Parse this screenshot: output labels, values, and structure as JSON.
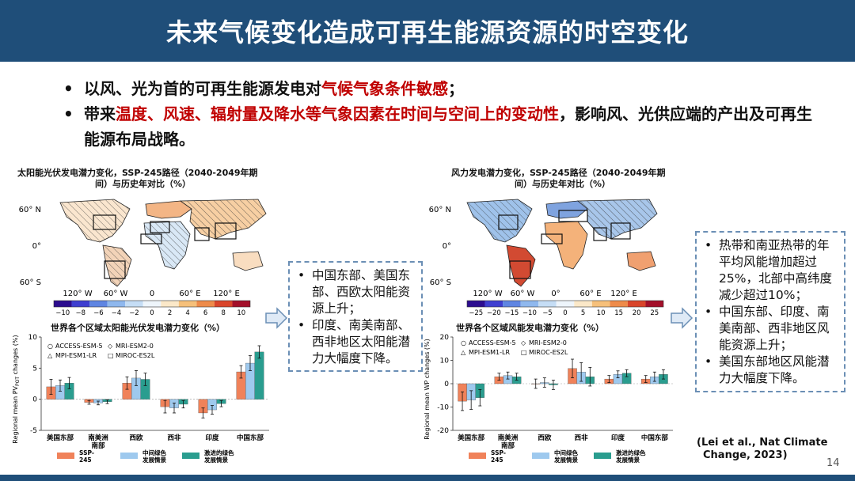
{
  "title": "未来气候变化造成可再生能源资源的时空变化",
  "bullets": [
    {
      "pre": "以风、光为首的可再生能源发电对",
      "red": "气候气象条件敏感",
      "post": "；"
    },
    {
      "pre": "带来",
      "red": "温度、风速、辐射量及降水等气象因素在时间与空间上的变动性",
      "post": "，影响风、光供应端的产出及可再生能源布局战略。"
    }
  ],
  "left": {
    "map_title_line1": "太阳能光伏发电潜力变化，SSP-245路径（2040-2049年期",
    "map_title_line2": "间）与历史年对比（%）",
    "lat_labels": [
      "60° N",
      "0°",
      "60° S"
    ],
    "lon_labels": [
      "120° W",
      "60° W",
      "0",
      "60° E",
      "120° E"
    ],
    "colorbar_ticks": [
      "−10",
      "−8",
      "−6",
      "−4",
      "−2",
      "0",
      "2",
      "4",
      "6",
      "8",
      "10"
    ],
    "colorbar_colors": [
      "#2c0d8f",
      "#3f3fd0",
      "#5f85e2",
      "#8fb8ee",
      "#c5ddf5",
      "#eef5fb",
      "#fbe8c8",
      "#f6c07a",
      "#ee8b4a",
      "#d9452b",
      "#a3102a"
    ],
    "bar_title": "世界各个区域太阳能光伏发电潜力变化（%）",
    "ylabel": "Regional mean PV",
    "ylabel_sub": "POT",
    "ylabel_tail": " changes (%)",
    "legend_models": [
      "ACCESS-ESM-5",
      "MRI-ESM2-0",
      "MPI-ESM1-LR",
      "MIROC-ES2L"
    ],
    "callout": [
      "中国东部、美国东部、西欧太阳能资源上升；",
      "印度、南美南部、西非地区太阳能潜力大幅度下降。"
    ]
  },
  "right": {
    "map_title_line1": "风力发电潜力变化，SSP-245路径（2040-2049年期",
    "map_title_line2": "间）与历史年对比（%）",
    "lat_labels": [
      "60° N",
      "0°",
      "60° S"
    ],
    "lon_labels": [
      "120° W",
      "60° W",
      "0°",
      "60° E",
      "120° E"
    ],
    "colorbar_ticks": [
      "−25",
      "−20",
      "−15",
      "−10",
      "−5",
      "0",
      "5",
      "10",
      "15",
      "20",
      "25"
    ],
    "colorbar_colors": [
      "#2c0d8f",
      "#3f3fd0",
      "#5f85e2",
      "#8fb8ee",
      "#c5ddf5",
      "#eef5fb",
      "#fbe8c8",
      "#f6c07a",
      "#ee8b4a",
      "#d9452b",
      "#a3102a"
    ],
    "bar_title": "世界各个区域风能发电潜力变化（%）",
    "ylabel": "Regional mean WP changes (%)",
    "legend_models": [
      "ACCESS-ESM-5",
      "MRI-ESM2-0",
      "MPI-ESM1-LR",
      "MIROC-ES2L"
    ],
    "callout": [
      "热带和南亚热带的年平均风能增加超过25%，北部中高纬度减少超过10%；",
      "中国东部、印度、南美南部、西非地区风能资源上升；",
      "美国东部地区风能潜力大幅度下降。"
    ]
  },
  "chart_data": [
    {
      "type": "bar",
      "title": "世界各个区域太阳能光伏发电潜力变化（%）",
      "ylabel": "Regional mean PVPOT changes (%)",
      "ylim": [
        -5,
        10
      ],
      "yticks": [
        -5,
        0,
        5,
        10
      ],
      "grid": false,
      "categories": [
        "美国东部",
        "南美洲南部",
        "西欧",
        "西非",
        "印度",
        "中国东部"
      ],
      "series": [
        {
          "name": "SSP-245",
          "color": "#f0825a",
          "values": [
            2.0,
            -0.5,
            2.6,
            -1.2,
            -2.2,
            4.4
          ]
        },
        {
          "name": "中间绿色发展情景",
          "color": "#9ec9ee",
          "values": [
            2.2,
            -0.6,
            3.4,
            -1.4,
            -1.7,
            5.8
          ]
        },
        {
          "name": "激进的绿色发展情景",
          "color": "#2a9d8f",
          "values": [
            2.6,
            -0.4,
            3.2,
            -0.8,
            -0.7,
            7.6
          ]
        }
      ],
      "errors": [
        [
          1.2,
          0.3,
          1.0,
          1.0,
          0.8,
          1.0
        ],
        [
          0.9,
          0.3,
          1.2,
          0.8,
          0.7,
          1.2
        ],
        [
          0.9,
          0.3,
          1.0,
          0.6,
          0.5,
          1.0
        ]
      ],
      "legend": "bottom"
    },
    {
      "type": "bar",
      "title": "世界各个区域风能发电潜力变化（%）",
      "ylabel": "Regional mean WP changes (%)",
      "ylim": [
        -20,
        20
      ],
      "yticks": [
        -20,
        -10,
        0,
        10,
        20
      ],
      "grid": false,
      "categories": [
        "美国东部",
        "南美洲南部",
        "西欧",
        "西非",
        "印度",
        "中国东部"
      ],
      "series": [
        {
          "name": "SSP-245",
          "color": "#f0825a",
          "values": [
            -7.5,
            3.0,
            0.0,
            6.5,
            2.0,
            2.0
          ]
        },
        {
          "name": "中间绿色发展情景",
          "color": "#9ec9ee",
          "values": [
            -7.0,
            3.5,
            0.5,
            5.0,
            4.0,
            3.0
          ]
        },
        {
          "name": "激进的绿色发展情景",
          "color": "#2a9d8f",
          "values": [
            -6.0,
            3.0,
            -0.5,
            3.0,
            4.5,
            4.0
          ]
        }
      ],
      "errors": [
        [
          4.0,
          1.5,
          2.0,
          4.0,
          1.5,
          1.5
        ],
        [
          4.0,
          1.5,
          2.0,
          4.0,
          1.5,
          2.0
        ],
        [
          3.5,
          1.5,
          2.0,
          4.0,
          1.5,
          2.0
        ]
      ],
      "legend": "bottom"
    }
  ],
  "citation_line1": "(Lei et al., Nat Climate",
  "citation_line2": "Change, 2023)",
  "page_number": "14"
}
